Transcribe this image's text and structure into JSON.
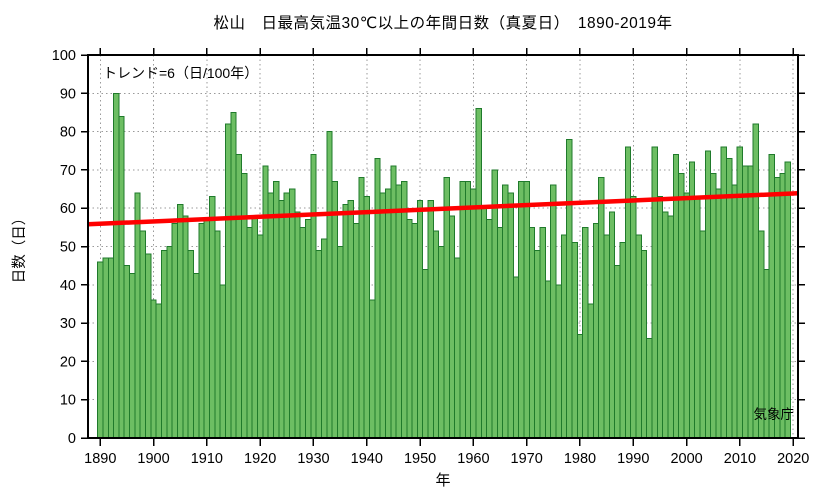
{
  "title": "松山　日最高気温30℃以上の年間日数（真夏日）　1890-2019年",
  "annotations": {
    "trend_label": "トレンド=6（日/100年）",
    "credit": "気象庁"
  },
  "axes": {
    "x_label": "年",
    "y_label": "日数（日）",
    "x_ticks": [
      1890,
      1900,
      1910,
      1920,
      1930,
      1940,
      1950,
      1960,
      1970,
      1980,
      1990,
      2000,
      2010,
      2020
    ],
    "y_ticks": [
      0,
      10,
      20,
      30,
      40,
      50,
      60,
      70,
      80,
      90,
      100
    ]
  },
  "colors": {
    "bar_fill": "#6dbe63",
    "bar_edge": "#1f7a2b",
    "trend": "#ff0000",
    "grid": "#9a9a9a",
    "frame": "#000000",
    "background": "#ffffff"
  },
  "chart_data": {
    "type": "bar",
    "title": "松山　日最高気温30℃以上の年間日数（真夏日）　1890-2019年",
    "xlabel": "年",
    "ylabel": "日数（日）",
    "ylim": [
      0,
      100
    ],
    "xlim": [
      1887.7,
      2020.9
    ],
    "grid": true,
    "x_start_year": 1890,
    "x_end_year": 2019,
    "x": [
      1890,
      1891,
      1892,
      1893,
      1894,
      1895,
      1896,
      1897,
      1898,
      1899,
      1900,
      1901,
      1902,
      1903,
      1904,
      1905,
      1906,
      1907,
      1908,
      1909,
      1910,
      1911,
      1912,
      1913,
      1914,
      1915,
      1916,
      1917,
      1918,
      1919,
      1920,
      1921,
      1922,
      1923,
      1924,
      1925,
      1926,
      1927,
      1928,
      1929,
      1930,
      1931,
      1932,
      1933,
      1934,
      1935,
      1936,
      1937,
      1938,
      1939,
      1940,
      1941,
      1942,
      1943,
      1944,
      1945,
      1946,
      1947,
      1948,
      1949,
      1950,
      1951,
      1952,
      1953,
      1954,
      1955,
      1956,
      1957,
      1958,
      1959,
      1960,
      1961,
      1962,
      1963,
      1964,
      1965,
      1966,
      1967,
      1968,
      1969,
      1970,
      1971,
      1972,
      1973,
      1974,
      1975,
      1976,
      1977,
      1978,
      1979,
      1980,
      1981,
      1982,
      1983,
      1984,
      1985,
      1986,
      1987,
      1988,
      1989,
      1990,
      1991,
      1992,
      1993,
      1994,
      1995,
      1996,
      1997,
      1998,
      1999,
      2000,
      2001,
      2002,
      2003,
      2004,
      2005,
      2006,
      2007,
      2008,
      2009,
      2010,
      2011,
      2012,
      2013,
      2014,
      2015,
      2016,
      2017,
      2018,
      2019
    ],
    "values": [
      46,
      47,
      47,
      90,
      84,
      45,
      43,
      64,
      54,
      48,
      36,
      35,
      49,
      50,
      56,
      61,
      58,
      49,
      43,
      56,
      57,
      63,
      54,
      40,
      82,
      85,
      74,
      69,
      55,
      58,
      53,
      71,
      64,
      67,
      62,
      64,
      65,
      59,
      55,
      57,
      74,
      49,
      52,
      80,
      67,
      50,
      61,
      62,
      56,
      68,
      63,
      36,
      73,
      64,
      65,
      71,
      66,
      67,
      57,
      56,
      62,
      44,
      62,
      54,
      50,
      68,
      58,
      47,
      67,
      67,
      65,
      86,
      60,
      57,
      70,
      55,
      66,
      64,
      42,
      67,
      67,
      55,
      49,
      55,
      41,
      66,
      40,
      53,
      78,
      51,
      27,
      55,
      35,
      56,
      68,
      53,
      59,
      45,
      51,
      76,
      63,
      53,
      49,
      26,
      76,
      63,
      59,
      58,
      74,
      69,
      64,
      72,
      63,
      54,
      75,
      69,
      65,
      76,
      73,
      66,
      76,
      71,
      71,
      82,
      54,
      44,
      74,
      68,
      69,
      72
    ],
    "trend": {
      "rate_per_100yr": 6,
      "value_at_left_edge": 55.8,
      "value_at_right_edge": 63.9
    },
    "legend": null
  }
}
